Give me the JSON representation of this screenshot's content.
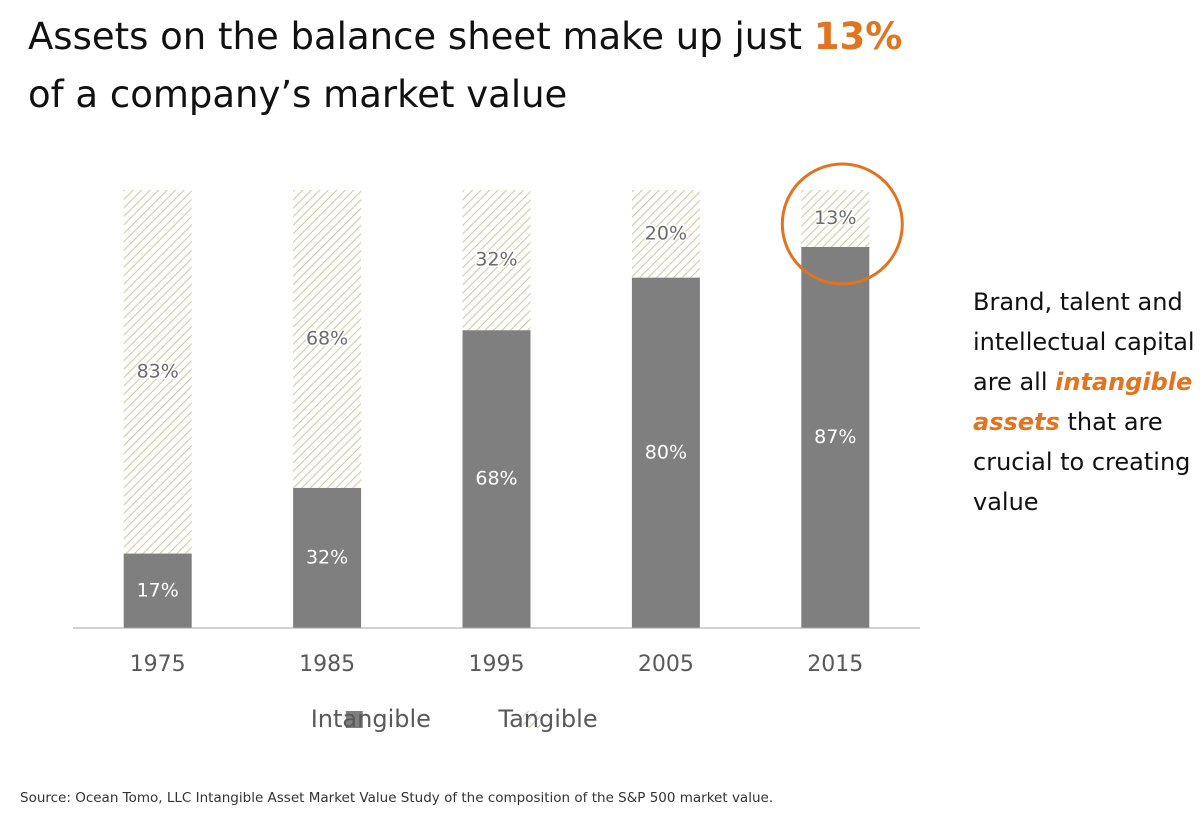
{
  "chart_data": {
    "type": "stacked_bar",
    "title_lead": "Assets on the balance sheet make up just",
    "title_highlight": "13%",
    "title_rest": "of a company’s market value",
    "categories": [
      "1975",
      "1985",
      "1995",
      "2005",
      "2015"
    ],
    "series": [
      {
        "name": "Intangible",
        "color": "#7f7f7f",
        "values": [
          17,
          32,
          68,
          80,
          87
        ],
        "value_labels": [
          "17%",
          "32%",
          "68%",
          "80%",
          "87%"
        ]
      },
      {
        "name": "Tangible",
        "color": "#d6c9a8",
        "values": [
          83,
          68,
          32,
          20,
          13
        ],
        "value_labels": [
          "83%",
          "68%",
          "32%",
          "20%",
          "13%"
        ]
      }
    ],
    "highlight_color": "#e2731f",
    "annotation_lead": "Brand, talent and intellectual capital are all",
    "annotation_highlight": "intangible assets",
    "annotation_rest": "that are crucial to creating value",
    "source": "Source: Ocean Tomo, LLC Intangible Asset Market Value Study of the composition of the S&P 500 market value."
  }
}
